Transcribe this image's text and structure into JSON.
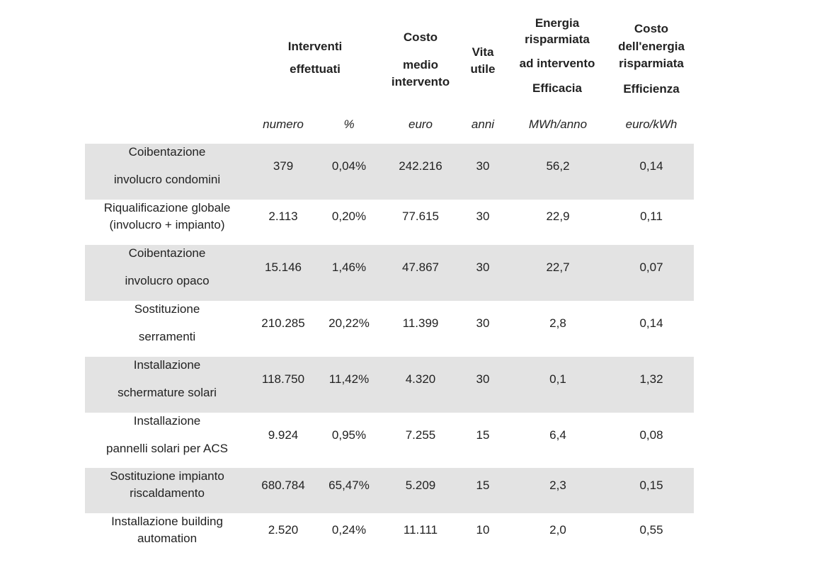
{
  "header": {
    "interventi": [
      "Interventi",
      "effettuati"
    ],
    "costo_medio": [
      "Costo",
      "medio",
      "intervento"
    ],
    "vita": [
      "Vita",
      "utile"
    ],
    "energia": [
      "Energia",
      "risparmiata",
      "ad intervento",
      "Efficacia"
    ],
    "costo_energia": [
      "Costo",
      "dell'energia",
      "risparmiata",
      "Efficienza"
    ]
  },
  "units": [
    "numero",
    "%",
    "euro",
    "anni",
    "MWh/anno",
    "euro/kWh"
  ],
  "rows": [
    {
      "label": [
        "Coibentazione",
        "involucro condomini"
      ],
      "numero": "379",
      "percent": "0,04%",
      "costo": "242.216",
      "vita": "30",
      "energia": "56,2",
      "efficienza": "0,14"
    },
    {
      "label": [
        "Riqualificazione globale",
        "(involucro + impianto)"
      ],
      "numero": "2.113",
      "percent": "0,20%",
      "costo": "77.615",
      "vita": "30",
      "energia": "22,9",
      "efficienza": "0,11"
    },
    {
      "label": [
        "Coibentazione",
        "involucro opaco"
      ],
      "numero": "15.146",
      "percent": "1,46%",
      "costo": "47.867",
      "vita": "30",
      "energia": "22,7",
      "efficienza": "0,07"
    },
    {
      "label": [
        "Sostituzione",
        "serramenti"
      ],
      "numero": "210.285",
      "percent": "20,22%",
      "costo": "11.399",
      "vita": "30",
      "energia": "2,8",
      "efficienza": "0,14"
    },
    {
      "label": [
        "Installazione",
        "schermature solari"
      ],
      "numero": "118.750",
      "percent": "11,42%",
      "costo": "4.320",
      "vita": "30",
      "energia": "0,1",
      "efficienza": "1,32"
    },
    {
      "label": [
        "Installazione",
        "pannelli solari per ACS"
      ],
      "numero": "9.924",
      "percent": "0,95%",
      "costo": "7.255",
      "vita": "15",
      "energia": "6,4",
      "efficienza": "0,08"
    },
    {
      "label": [
        "Sostituzione impianto",
        "riscaldamento"
      ],
      "numero": "680.784",
      "percent": "65,47%",
      "costo": "5.209",
      "vita": "15",
      "energia": "2,3",
      "efficienza": "0,15"
    },
    {
      "label": [
        "Installazione building",
        "automation"
      ],
      "numero": "2.520",
      "percent": "0,24%",
      "costo": "11.111",
      "vita": "10",
      "energia": "2,0",
      "efficienza": "0,55"
    }
  ]
}
